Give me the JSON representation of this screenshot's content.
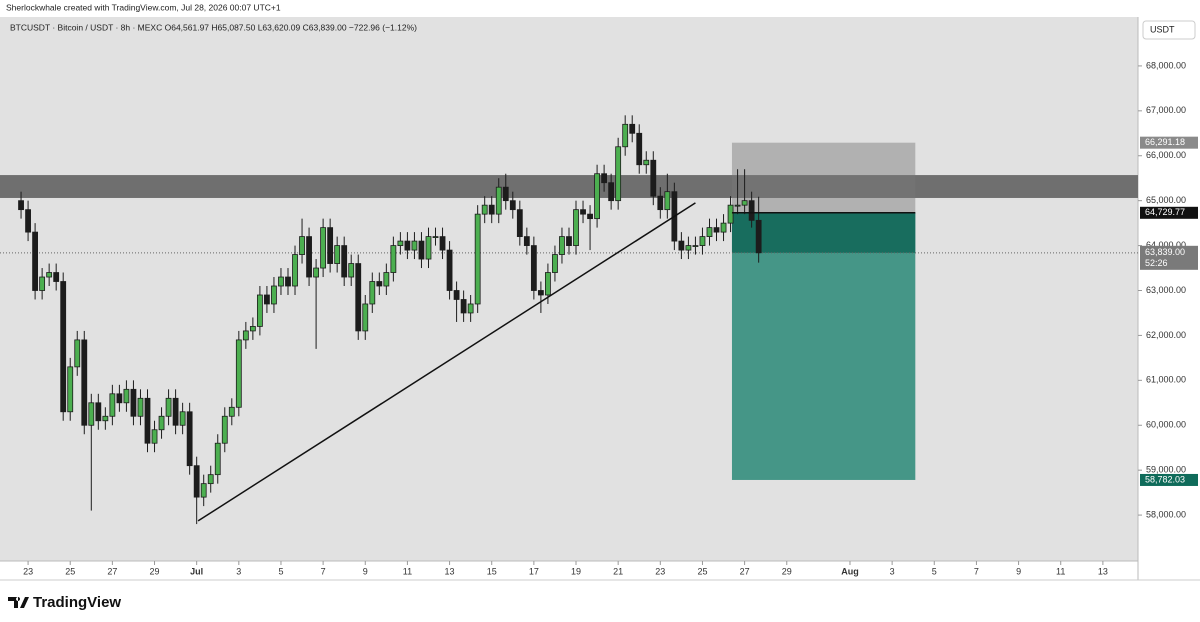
{
  "chart_data": {
    "type": "candlestick",
    "title": "Sherlockwhale created with TradingView.com, Jul 28, 2026 00:07 UTC+1",
    "subtitle": "BTCUSDT · Bitcoin / USDT · 8h · MEXC   O64,561.97 H65,087.50 L63,620.09 C63,839.00 −722.96 (−1.12%)",
    "currency": "USDT",
    "brand": "TradingView",
    "up_color": "#4caf50",
    "down_color": "#1c1c1c",
    "open": [
      65000,
      64800,
      64300,
      63000,
      63300,
      63400,
      63200,
      60300,
      61300,
      61900,
      60000,
      60500,
      60100,
      60200,
      60700,
      60500,
      60800,
      60200,
      60600,
      59600,
      59900,
      60200,
      60600,
      60000,
      60300,
      59100,
      58400,
      58700,
      58900,
      59600,
      60200,
      60400,
      61900,
      62100,
      62200,
      62900,
      62700,
      63100,
      63300,
      63100,
      63800,
      64200,
      63300,
      63500,
      64400,
      63600,
      64000,
      63300,
      63600,
      62100,
      62700,
      63200,
      63100,
      63400,
      64000,
      64100,
      63900,
      64100,
      63700,
      64200,
      64200,
      63900,
      63000,
      62800,
      62500,
      62700,
      64700,
      64900,
      64700,
      65300,
      65000,
      64800,
      64200,
      64000,
      63000,
      62900,
      63400,
      63800,
      64200,
      64000,
      64800,
      64700,
      64600,
      65600,
      65400,
      65000,
      66200,
      66700,
      66500,
      65800,
      65900,
      65100,
      64800,
      65200,
      64100,
      63900,
      64000,
      64000,
      64200,
      64400,
      64300,
      64500,
      64900,
      64900,
      65000,
      64561.97
    ],
    "high": [
      65200,
      65000,
      64500,
      63500,
      63600,
      63600,
      63400,
      61500,
      62100,
      62100,
      60700,
      60700,
      60400,
      60900,
      60900,
      61000,
      61000,
      60800,
      60800,
      60100,
      60400,
      60800,
      60800,
      60500,
      60500,
      59300,
      58900,
      59100,
      59800,
      60400,
      60600,
      62100,
      62300,
      62400,
      63100,
      63100,
      63300,
      63500,
      63500,
      64000,
      64600,
      64400,
      63700,
      64600,
      64600,
      64200,
      64200,
      63800,
      63800,
      62900,
      63400,
      63400,
      63600,
      64200,
      64300,
      64300,
      64300,
      64300,
      64400,
      64400,
      64400,
      64100,
      63200,
      63000,
      62900,
      64900,
      65100,
      65100,
      65500,
      65600,
      65200,
      65000,
      64400,
      64200,
      63200,
      63600,
      64000,
      64400,
      64400,
      65000,
      65000,
      64900,
      65800,
      65800,
      65600,
      66400,
      66900,
      66900,
      66700,
      66100,
      66100,
      65300,
      65600,
      65400,
      64300,
      64200,
      64200,
      64400,
      64600,
      64600,
      64700,
      65100,
      65700,
      65700,
      65200,
      65087.5
    ],
    "low": [
      64600,
      64100,
      62800,
      62800,
      63100,
      63000,
      60100,
      60100,
      61100,
      59800,
      58100,
      59900,
      59900,
      60000,
      60300,
      60300,
      60000,
      60000,
      59400,
      59400,
      59700,
      60000,
      59800,
      59800,
      58900,
      57800,
      58200,
      58500,
      58700,
      59400,
      60000,
      60200,
      61700,
      61900,
      62000,
      62500,
      62500,
      62900,
      62900,
      62900,
      63600,
      63100,
      61700,
      63300,
      63400,
      63400,
      63100,
      63100,
      61900,
      61900,
      62500,
      62900,
      62900,
      63200,
      63800,
      63700,
      63700,
      63500,
      63500,
      64000,
      63700,
      62800,
      62300,
      62300,
      62300,
      62500,
      64500,
      64500,
      64500,
      64800,
      64600,
      64000,
      63800,
      62800,
      62500,
      62700,
      63200,
      63600,
      63800,
      63800,
      64500,
      63900,
      64400,
      65200,
      64800,
      64800,
      66000,
      66300,
      65600,
      65600,
      64900,
      64600,
      64600,
      63900,
      63700,
      63700,
      63800,
      63800,
      64000,
      64100,
      64100,
      64300,
      64700,
      64700,
      64400,
      63620.09
    ],
    "close": [
      64800,
      64300,
      63000,
      63300,
      63400,
      63200,
      60300,
      61300,
      61900,
      60000,
      60500,
      60100,
      60200,
      60700,
      60500,
      60800,
      60200,
      60600,
      59600,
      59900,
      60200,
      60600,
      60000,
      60300,
      59100,
      58400,
      58700,
      58900,
      59600,
      60200,
      60400,
      61900,
      62100,
      62200,
      62900,
      62700,
      63100,
      63300,
      63100,
      63800,
      64200,
      63300,
      63500,
      64400,
      63600,
      64000,
      63300,
      63600,
      62100,
      62700,
      63200,
      63100,
      63400,
      64000,
      64100,
      63900,
      64100,
      63700,
      64200,
      64200,
      63900,
      63000,
      62800,
      62500,
      62700,
      64700,
      64900,
      64700,
      65300,
      65000,
      64800,
      64200,
      64000,
      63000,
      62900,
      63400,
      63800,
      64200,
      64000,
      64800,
      64700,
      64600,
      65600,
      65400,
      65000,
      66200,
      66700,
      66500,
      65800,
      65900,
      65100,
      64800,
      65200,
      64100,
      63900,
      64000,
      64000,
      64200,
      64400,
      64300,
      64500,
      64900,
      64900,
      65000,
      64562,
      63839
    ],
    "xlim": [
      -2,
      159
    ],
    "xticks": [
      {
        "value": 1,
        "label": "23"
      },
      {
        "value": 7,
        "label": "25"
      },
      {
        "value": 13,
        "label": "27"
      },
      {
        "value": 19,
        "label": "29"
      },
      {
        "value": 25,
        "label": "Jul"
      },
      {
        "value": 31,
        "label": "3"
      },
      {
        "value": 37,
        "label": "5"
      },
      {
        "value": 43,
        "label": "7"
      },
      {
        "value": 49,
        "label": "9"
      },
      {
        "value": 55,
        "label": "11"
      },
      {
        "value": 61,
        "label": "13"
      },
      {
        "value": 67,
        "label": "15"
      },
      {
        "value": 73,
        "label": "17"
      },
      {
        "value": 79,
        "label": "19"
      },
      {
        "value": 85,
        "label": "21"
      },
      {
        "value": 91,
        "label": "23"
      },
      {
        "value": 97,
        "label": "25"
      },
      {
        "value": 103,
        "label": "27"
      },
      {
        "value": 109,
        "label": "29"
      },
      {
        "value": 118,
        "label": "Aug"
      },
      {
        "value": 124,
        "label": "3"
      },
      {
        "value": 130,
        "label": "5"
      },
      {
        "value": 136,
        "label": "7"
      },
      {
        "value": 142,
        "label": "9"
      },
      {
        "value": 148,
        "label": "11"
      },
      {
        "value": 154,
        "label": "13"
      }
    ],
    "ylim": [
      57000,
      69000
    ],
    "yticks": [
      {
        "value": 58000,
        "label": "58,000.00"
      },
      {
        "value": 59000,
        "label": "59,000.00"
      },
      {
        "value": 60000,
        "label": "60,000.00"
      },
      {
        "value": 61000,
        "label": "61,000.00"
      },
      {
        "value": 62000,
        "label": "62,000.00"
      },
      {
        "value": 63000,
        "label": "63,000.00"
      },
      {
        "value": 64000,
        "label": "64,000.00"
      },
      {
        "value": 65000,
        "label": "65,000.00"
      },
      {
        "value": 66000,
        "label": "66,000.00"
      },
      {
        "value": 67000,
        "label": "67,000.00"
      },
      {
        "value": 68000,
        "label": "68,000.00"
      }
    ],
    "zone": {
      "low": 65060,
      "high": 65570
    },
    "trendline": {
      "x": [
        25.2,
        96
      ],
      "y": [
        57870,
        64950
      ]
    },
    "position": {
      "x": [
        101.2,
        127.3
      ],
      "stop": {
        "value": 66291.18,
        "label": "66,291.18"
      },
      "entry": {
        "value": 64729.77,
        "label": "64,729.77"
      },
      "target": {
        "value": 58782.03,
        "label": "58,782.03"
      }
    },
    "last_price": {
      "value": 63839,
      "label": "63,839.00",
      "countdown": "52:26"
    }
  }
}
